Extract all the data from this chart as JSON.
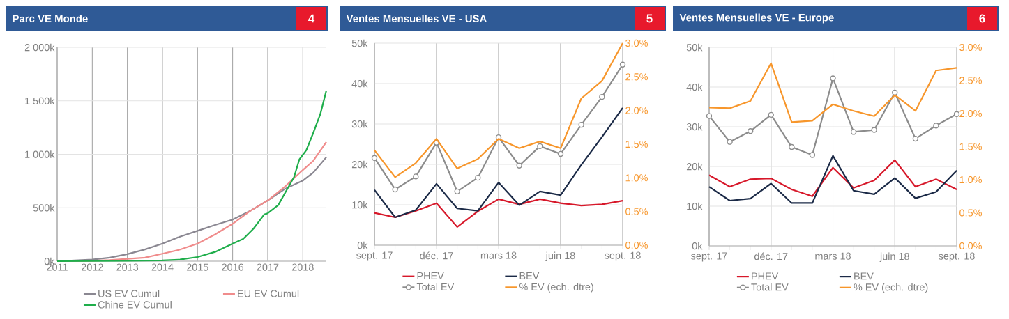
{
  "chart_data": [
    {
      "type": "line",
      "title": "Parc VE Monde",
      "annotations": [
        "4"
      ],
      "xlim": [
        2011,
        2018.67
      ],
      "xticks": [
        2011,
        2012,
        2013,
        2014,
        2015,
        2016,
        2017,
        2018
      ],
      "ylim": [
        0,
        2000
      ],
      "yticks": [
        {
          "value": 0,
          "label": "0k"
        },
        {
          "value": 500,
          "label": "500k"
        },
        {
          "value": 1000,
          "label": "1 000k"
        },
        {
          "value": 1500,
          "label": "1 500k"
        },
        {
          "value": 2000,
          "label": "2 000k"
        }
      ],
      "grid": true,
      "legend": "bottom",
      "series": [
        {
          "name": "US EV Cumul",
          "color": "#8a8791",
          "x": [
            2011,
            2012,
            2012.5,
            2013,
            2013.5,
            2014,
            2014.5,
            2015,
            2015.5,
            2016,
            2016.5,
            2017,
            2017.5,
            2018,
            2018.3,
            2018.67
          ],
          "values": [
            0,
            15,
            33,
            66,
            110,
            164,
            230,
            284,
            339,
            389,
            470,
            568,
            678,
            754,
            830,
            973
          ]
        },
        {
          "name": "EU EV Cumul",
          "color": "#f08c8c",
          "x": [
            2011,
            2012,
            2012.5,
            2013,
            2013.5,
            2014,
            2014.5,
            2015,
            2015.5,
            2016,
            2016.5,
            2017,
            2017.5,
            2018,
            2018.3,
            2018.67
          ],
          "values": [
            0,
            4,
            11,
            22,
            33,
            70,
            109,
            164,
            251,
            350,
            470,
            568,
            700,
            853,
            940,
            1115
          ]
        },
        {
          "name": "Chine EV Cumul",
          "color": "#1fae4b",
          "x": [
            2011,
            2013,
            2014,
            2014.5,
            2015,
            2015.5,
            2016,
            2016.3,
            2016.6,
            2016.9,
            2017,
            2017.3,
            2017.6,
            2017.75,
            2017.9,
            2018,
            2018.1,
            2018.3,
            2018.5,
            2018.67
          ],
          "values": [
            0,
            4,
            7,
            15,
            39,
            87,
            164,
            208,
            306,
            437,
            448,
            525,
            700,
            787,
            951,
            995,
            1038,
            1202,
            1377,
            1596
          ]
        }
      ]
    },
    {
      "type": "line",
      "title": "Ventes Mensuelles VE - USA",
      "annotations": [
        "5"
      ],
      "categories": [
        "sept. 17",
        null,
        null,
        "déc. 17",
        null,
        null,
        "mars 18",
        null,
        null,
        "juin 18",
        null,
        null,
        "sept. 18"
      ],
      "ylim": [
        0,
        50
      ],
      "yticks": [
        {
          "value": 0,
          "label": "0k"
        },
        {
          "value": 10,
          "label": "10k"
        },
        {
          "value": 20,
          "label": "20k"
        },
        {
          "value": 30,
          "label": "30k"
        },
        {
          "value": 40,
          "label": "40k"
        },
        {
          "value": 50,
          "label": "50k"
        }
      ],
      "y2lim": [
        0,
        3
      ],
      "y2ticks": [
        {
          "value": 0,
          "label": "0.0%"
        },
        {
          "value": 0.5,
          "label": "0.5%"
        },
        {
          "value": 1,
          "label": "1.0%"
        },
        {
          "value": 1.5,
          "label": "1.5%"
        },
        {
          "value": 2,
          "label": "2.0%"
        },
        {
          "value": 2.5,
          "label": "2.5%"
        },
        {
          "value": 3,
          "label": "3.0%"
        }
      ],
      "grid": true,
      "legend": "bottom",
      "series": [
        {
          "name": "PHEV",
          "color": "#d7182a",
          "values": [
            8.0,
            6.9,
            8.5,
            10.4,
            4.5,
            8.4,
            11.4,
            10.1,
            11.4,
            10.4,
            9.8,
            10.1,
            11.0
          ]
        },
        {
          "name": "BEV",
          "color": "#1b2a47",
          "values": [
            13.7,
            6.9,
            8.7,
            15.2,
            9.1,
            8.5,
            15.5,
            9.9,
            13.3,
            12.4,
            19.9,
            26.8,
            34.0
          ]
        },
        {
          "name": "Total EV",
          "color": "#8c8c8c",
          "marker": "circle",
          "values": [
            21.6,
            13.8,
            17.0,
            25.4,
            13.3,
            16.7,
            26.7,
            19.7,
            24.5,
            22.6,
            29.8,
            36.7,
            44.7
          ]
        },
        {
          "name": "% EV (ech. dtre)",
          "color": "#f7962b",
          "axis": "y2",
          "values": [
            1.41,
            1.01,
            1.22,
            1.58,
            1.14,
            1.28,
            1.58,
            1.44,
            1.54,
            1.44,
            2.18,
            2.44,
            3.0
          ]
        }
      ]
    },
    {
      "type": "line",
      "title": "Ventes Mensuelles VE - Europe",
      "annotations": [
        "6"
      ],
      "categories": [
        "sept. 17",
        null,
        null,
        "déc. 17",
        null,
        null,
        "mars 18",
        null,
        null,
        "juin 18",
        null,
        null,
        "sept. 18"
      ],
      "ylim": [
        0,
        50
      ],
      "yticks": [
        {
          "value": 0,
          "label": "0k"
        },
        {
          "value": 10,
          "label": "10k"
        },
        {
          "value": 20,
          "label": "20k"
        },
        {
          "value": 30,
          "label": "30k"
        },
        {
          "value": 40,
          "label": "40k"
        },
        {
          "value": 50,
          "label": "50k"
        }
      ],
      "y2lim": [
        0,
        3
      ],
      "y2ticks": [
        {
          "value": 0,
          "label": "0.0%"
        },
        {
          "value": 0.5,
          "label": "0.5%"
        },
        {
          "value": 1,
          "label": "1.0%"
        },
        {
          "value": 1.5,
          "label": "1.5%"
        },
        {
          "value": 2,
          "label": "2.0%"
        },
        {
          "value": 2.5,
          "label": "2.5%"
        },
        {
          "value": 3,
          "label": "3.0%"
        }
      ],
      "grid": true,
      "legend": "bottom",
      "series": [
        {
          "name": "PHEV",
          "color": "#d7182a",
          "values": [
            17.8,
            14.9,
            16.8,
            17.0,
            14.2,
            12.5,
            19.7,
            14.6,
            16.5,
            21.6,
            14.9,
            16.8,
            14.2
          ]
        },
        {
          "name": "BEV",
          "color": "#1b2a47",
          "values": [
            14.9,
            11.4,
            11.9,
            15.7,
            10.8,
            10.8,
            22.7,
            13.9,
            13.0,
            17.1,
            12.0,
            13.6,
            19.0
          ]
        },
        {
          "name": "Total EV",
          "color": "#8c8c8c",
          "marker": "circle",
          "values": [
            32.7,
            26.2,
            28.9,
            33.0,
            24.9,
            22.9,
            42.2,
            28.7,
            29.2,
            38.6,
            27.0,
            30.3,
            33.2
          ]
        },
        {
          "name": "% EV (ech. dtre)",
          "color": "#f7962b",
          "axis": "y2",
          "values": [
            2.09,
            2.08,
            2.19,
            2.76,
            1.87,
            1.89,
            2.14,
            2.04,
            1.96,
            2.28,
            2.04,
            2.65,
            2.69
          ]
        }
      ]
    }
  ]
}
